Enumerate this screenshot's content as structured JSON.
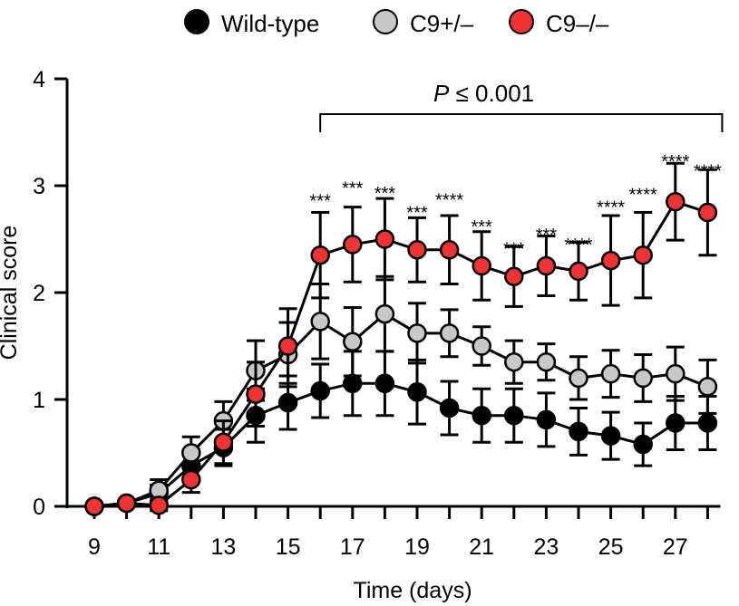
{
  "chart_data": {
    "type": "line",
    "xlabel": "Time (days)",
    "ylabel": "Clinical score",
    "xlim": [
      9,
      28
    ],
    "ylim": [
      0,
      4
    ],
    "xticks": [
      9,
      11,
      13,
      15,
      17,
      19,
      21,
      23,
      25,
      27
    ],
    "yticks": [
      0,
      1,
      2,
      3,
      4
    ],
    "x": [
      9,
      10,
      11,
      12,
      13,
      14,
      15,
      16,
      17,
      18,
      19,
      20,
      21,
      22,
      23,
      24,
      25,
      26,
      27,
      28
    ],
    "series": [
      {
        "name": "Wild-type",
        "color": "#000000",
        "values": [
          0,
          0.03,
          0.12,
          0.38,
          0.55,
          0.85,
          0.97,
          1.08,
          1.15,
          1.15,
          1.07,
          0.92,
          0.85,
          0.85,
          0.81,
          0.7,
          0.66,
          0.58,
          0.78,
          0.78
        ],
        "errors": [
          0,
          0.02,
          0.08,
          0.15,
          0.17,
          0.25,
          0.25,
          0.25,
          0.3,
          0.3,
          0.3,
          0.25,
          0.25,
          0.25,
          0.25,
          0.22,
          0.22,
          0.2,
          0.25,
          0.25
        ]
      },
      {
        "name": "C9+/–",
        "color": "#c8c8c8",
        "values": [
          0,
          0.03,
          0.15,
          0.5,
          0.8,
          1.27,
          1.42,
          1.73,
          1.54,
          1.8,
          1.62,
          1.62,
          1.5,
          1.35,
          1.35,
          1.2,
          1.24,
          1.2,
          1.24,
          1.12
        ],
        "errors": [
          0,
          0.02,
          0.1,
          0.15,
          0.18,
          0.28,
          0.3,
          0.35,
          0.32,
          0.35,
          0.28,
          0.22,
          0.18,
          0.2,
          0.17,
          0.2,
          0.22,
          0.22,
          0.25,
          0.25
        ]
      },
      {
        "name": "C9–/–",
        "color": "#ee3333",
        "values": [
          0,
          0.03,
          0.01,
          0.25,
          0.6,
          1.05,
          1.5,
          2.35,
          2.45,
          2.5,
          2.4,
          2.4,
          2.25,
          2.15,
          2.25,
          2.2,
          2.3,
          2.35,
          2.85,
          2.75
        ],
        "errors": [
          0,
          0.02,
          0.05,
          0.12,
          0.2,
          0.3,
          0.35,
          0.4,
          0.35,
          0.38,
          0.3,
          0.32,
          0.32,
          0.28,
          0.28,
          0.27,
          0.42,
          0.4,
          0.36,
          0.4
        ]
      }
    ],
    "significance": [
      {
        "x": 16,
        "label": "***",
        "y": 2.92
      },
      {
        "x": 17,
        "label": "***",
        "y": 3.04
      },
      {
        "x": 18,
        "label": "***",
        "y": 2.99
      },
      {
        "x": 19,
        "label": "***",
        "y": 2.81
      },
      {
        "x": 20,
        "label": "****",
        "y": 2.93
      },
      {
        "x": 21,
        "label": "***",
        "y": 2.68
      },
      {
        "x": 22,
        "label": "***",
        "y": 2.47
      },
      {
        "x": 23,
        "label": "***",
        "y": 2.6
      },
      {
        "x": 24,
        "label": "****",
        "y": 2.51
      },
      {
        "x": 25,
        "label": "****",
        "y": 2.86
      },
      {
        "x": 26,
        "label": "****",
        "y": 2.98
      },
      {
        "x": 27,
        "label": "****",
        "y": 3.29
      },
      {
        "x": 28,
        "label": "****",
        "y": 3.2
      }
    ],
    "pvalue_bracket": {
      "from": 16,
      "to": 28,
      "label_p": "P",
      "label_rest": " ≤  0.001"
    },
    "grid": false,
    "legend_position": "top-center"
  }
}
